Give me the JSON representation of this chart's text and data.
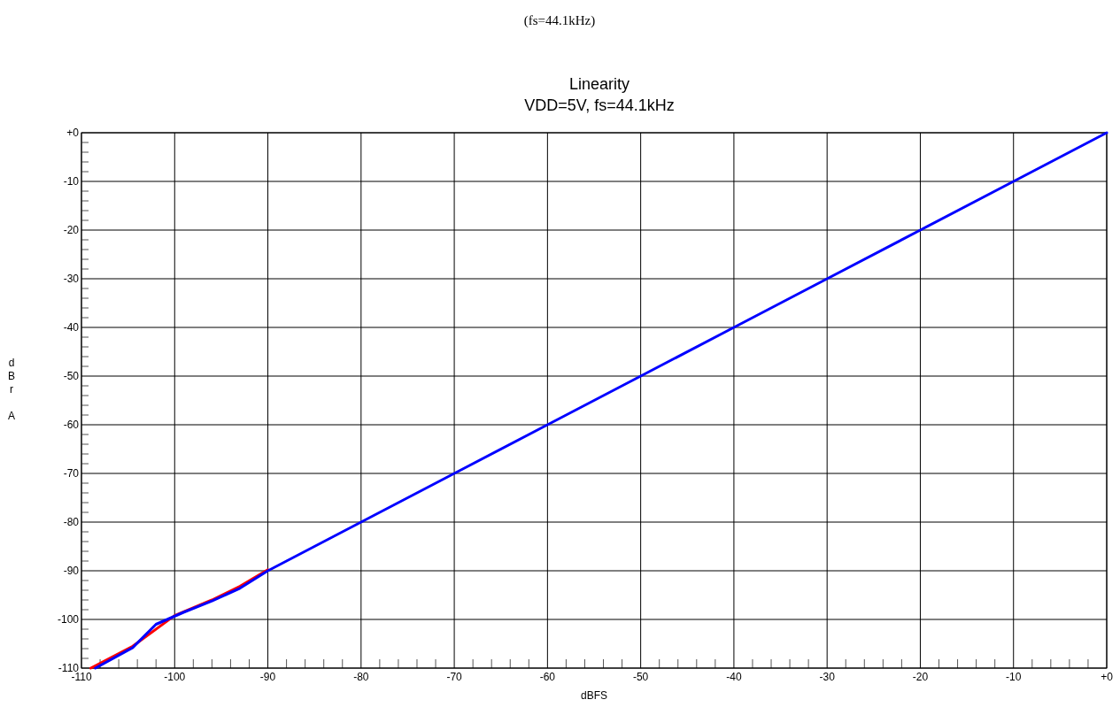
{
  "chart_data": {
    "type": "line",
    "title": "Linearity",
    "subtitle": "VDD=5V, fs=44.1kHz",
    "xlabel": "dBFS",
    "ylabel": "dBr A",
    "annotations": [
      "(fs=44.1kHz)"
    ],
    "xlim": [
      -110,
      0
    ],
    "ylim": [
      -110,
      0
    ],
    "xticks": [
      {
        "value": -110,
        "label": "-110"
      },
      {
        "value": -108,
        "label": null
      },
      {
        "value": -106,
        "label": null
      },
      {
        "value": -104,
        "label": null
      },
      {
        "value": -102,
        "label": null
      },
      {
        "value": -100,
        "label": "-100"
      },
      {
        "value": -98,
        "label": null
      },
      {
        "value": -96,
        "label": null
      },
      {
        "value": -94,
        "label": null
      },
      {
        "value": -92,
        "label": null
      },
      {
        "value": -90,
        "label": "-90"
      },
      {
        "value": -88,
        "label": null
      },
      {
        "value": -86,
        "label": null
      },
      {
        "value": -84,
        "label": null
      },
      {
        "value": -82,
        "label": null
      },
      {
        "value": -80,
        "label": "-80"
      },
      {
        "value": -78,
        "label": null
      },
      {
        "value": -76,
        "label": null
      },
      {
        "value": -74,
        "label": null
      },
      {
        "value": -72,
        "label": null
      },
      {
        "value": -70,
        "label": "-70"
      },
      {
        "value": -68,
        "label": null
      },
      {
        "value": -66,
        "label": null
      },
      {
        "value": -64,
        "label": null
      },
      {
        "value": -62,
        "label": null
      },
      {
        "value": -60,
        "label": "-60"
      },
      {
        "value": -58,
        "label": null
      },
      {
        "value": -56,
        "label": null
      },
      {
        "value": -54,
        "label": null
      },
      {
        "value": -52,
        "label": null
      },
      {
        "value": -50,
        "label": "-50"
      },
      {
        "value": -48,
        "label": null
      },
      {
        "value": -46,
        "label": null
      },
      {
        "value": -44,
        "label": null
      },
      {
        "value": -42,
        "label": null
      },
      {
        "value": -40,
        "label": "-40"
      },
      {
        "value": -38,
        "label": null
      },
      {
        "value": -36,
        "label": null
      },
      {
        "value": -34,
        "label": null
      },
      {
        "value": -32,
        "label": null
      },
      {
        "value": -30,
        "label": "-30"
      },
      {
        "value": -28,
        "label": null
      },
      {
        "value": -26,
        "label": null
      },
      {
        "value": -24,
        "label": null
      },
      {
        "value": -22,
        "label": null
      },
      {
        "value": -20,
        "label": "-20"
      },
      {
        "value": -18,
        "label": null
      },
      {
        "value": -16,
        "label": null
      },
      {
        "value": -14,
        "label": null
      },
      {
        "value": -12,
        "label": null
      },
      {
        "value": -10,
        "label": "-10"
      },
      {
        "value": -8,
        "label": null
      },
      {
        "value": -6,
        "label": null
      },
      {
        "value": -4,
        "label": null
      },
      {
        "value": -2,
        "label": null
      },
      {
        "value": 0,
        "label": "+0"
      }
    ],
    "yticks": [
      {
        "value": -110,
        "label": "-110"
      },
      {
        "value": -108,
        "label": null
      },
      {
        "value": -106,
        "label": null
      },
      {
        "value": -104,
        "label": null
      },
      {
        "value": -102,
        "label": null
      },
      {
        "value": -100,
        "label": "-100"
      },
      {
        "value": -98,
        "label": null
      },
      {
        "value": -96,
        "label": null
      },
      {
        "value": -94,
        "label": null
      },
      {
        "value": -92,
        "label": null
      },
      {
        "value": -90,
        "label": "-90"
      },
      {
        "value": -88,
        "label": null
      },
      {
        "value": -86,
        "label": null
      },
      {
        "value": -84,
        "label": null
      },
      {
        "value": -82,
        "label": null
      },
      {
        "value": -80,
        "label": "-80"
      },
      {
        "value": -78,
        "label": null
      },
      {
        "value": -76,
        "label": null
      },
      {
        "value": -74,
        "label": null
      },
      {
        "value": -72,
        "label": null
      },
      {
        "value": -70,
        "label": "-70"
      },
      {
        "value": -68,
        "label": null
      },
      {
        "value": -66,
        "label": null
      },
      {
        "value": -64,
        "label": null
      },
      {
        "value": -62,
        "label": null
      },
      {
        "value": -60,
        "label": "-60"
      },
      {
        "value": -58,
        "label": null
      },
      {
        "value": -56,
        "label": null
      },
      {
        "value": -54,
        "label": null
      },
      {
        "value": -52,
        "label": null
      },
      {
        "value": -50,
        "label": "-50"
      },
      {
        "value": -48,
        "label": null
      },
      {
        "value": -46,
        "label": null
      },
      {
        "value": -44,
        "label": null
      },
      {
        "value": -42,
        "label": null
      },
      {
        "value": -40,
        "label": "-40"
      },
      {
        "value": -38,
        "label": null
      },
      {
        "value": -36,
        "label": null
      },
      {
        "value": -34,
        "label": null
      },
      {
        "value": -32,
        "label": null
      },
      {
        "value": -30,
        "label": "-30"
      },
      {
        "value": -28,
        "label": null
      },
      {
        "value": -26,
        "label": null
      },
      {
        "value": -24,
        "label": null
      },
      {
        "value": -22,
        "label": null
      },
      {
        "value": -20,
        "label": "-20"
      },
      {
        "value": -18,
        "label": null
      },
      {
        "value": -16,
        "label": null
      },
      {
        "value": -14,
        "label": null
      },
      {
        "value": -12,
        "label": null
      },
      {
        "value": -10,
        "label": "-10"
      },
      {
        "value": -8,
        "label": null
      },
      {
        "value": -6,
        "label": null
      },
      {
        "value": -4,
        "label": null
      },
      {
        "value": -2,
        "label": null
      },
      {
        "value": 0,
        "label": "+0"
      }
    ],
    "grid": true,
    "series": [
      {
        "color": "#ff0000",
        "x": [
          -109,
          -106.5,
          -104.5,
          -100,
          -96,
          -93,
          -90
        ],
        "values": [
          -110,
          -107.5,
          -105.5,
          -99.2,
          -96,
          -93.2,
          -89.8
        ]
      },
      {
        "color": "#0000ff",
        "x": [
          -108.5,
          -104.5,
          -102,
          -99,
          -96,
          -93,
          -90,
          -88,
          -83,
          -80,
          -70,
          -60,
          -50,
          -40,
          -30,
          -20,
          -10,
          0
        ],
        "values": [
          -110,
          -105.8,
          -101,
          -98.5,
          -96.2,
          -93.6,
          -90,
          -88,
          -83,
          -80,
          -70,
          -60,
          -50,
          -40,
          -30,
          -20,
          -10,
          0
        ]
      }
    ]
  }
}
